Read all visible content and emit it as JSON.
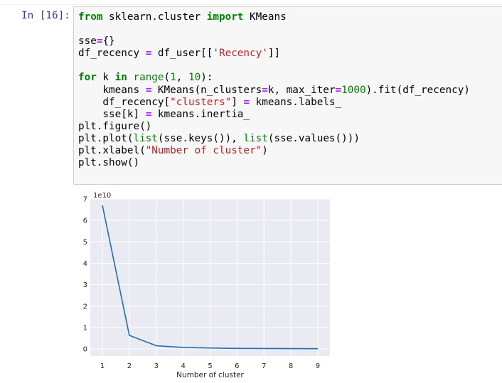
{
  "cell": {
    "prompt": "In [16]:",
    "code_lines": [
      [
        {
          "t": "from",
          "c": "kw"
        },
        {
          "t": " sklearn.cluster ",
          "c": "plain"
        },
        {
          "t": "import",
          "c": "kw"
        },
        {
          "t": " KMeans",
          "c": "plain"
        }
      ],
      [],
      [
        {
          "t": "sse",
          "c": "plain"
        },
        {
          "t": "=",
          "c": "op"
        },
        {
          "t": "{}",
          "c": "plain"
        }
      ],
      [
        {
          "t": "df_recency ",
          "c": "plain"
        },
        {
          "t": "=",
          "c": "op"
        },
        {
          "t": " df_user[[",
          "c": "plain"
        },
        {
          "t": "'Recency'",
          "c": "str"
        },
        {
          "t": "]]",
          "c": "plain"
        }
      ],
      [],
      [
        {
          "t": "for",
          "c": "kw"
        },
        {
          "t": " k ",
          "c": "plain"
        },
        {
          "t": "in",
          "c": "kw"
        },
        {
          "t": " ",
          "c": "plain"
        },
        {
          "t": "range",
          "c": "bi"
        },
        {
          "t": "(",
          "c": "plain"
        },
        {
          "t": "1",
          "c": "num"
        },
        {
          "t": ", ",
          "c": "plain"
        },
        {
          "t": "10",
          "c": "num"
        },
        {
          "t": "):",
          "c": "plain"
        }
      ],
      [
        {
          "t": "    kmeans ",
          "c": "plain"
        },
        {
          "t": "=",
          "c": "op"
        },
        {
          "t": " KMeans(n_clusters",
          "c": "plain"
        },
        {
          "t": "=",
          "c": "op"
        },
        {
          "t": "k, max_iter",
          "c": "plain"
        },
        {
          "t": "=",
          "c": "op"
        },
        {
          "t": "1000",
          "c": "num"
        },
        {
          "t": ").fit(df_recency)",
          "c": "plain"
        }
      ],
      [
        {
          "t": "    df_recency[",
          "c": "plain"
        },
        {
          "t": "\"clusters\"",
          "c": "str"
        },
        {
          "t": "] ",
          "c": "plain"
        },
        {
          "t": "=",
          "c": "op"
        },
        {
          "t": " kmeans.labels_",
          "c": "plain"
        }
      ],
      [
        {
          "t": "    sse[k] ",
          "c": "plain"
        },
        {
          "t": "=",
          "c": "op"
        },
        {
          "t": " kmeans.inertia_",
          "c": "plain"
        }
      ],
      [
        {
          "t": "plt.figure()",
          "c": "plain"
        }
      ],
      [
        {
          "t": "plt.plot(",
          "c": "plain"
        },
        {
          "t": "list",
          "c": "bi"
        },
        {
          "t": "(sse.keys()), ",
          "c": "plain"
        },
        {
          "t": "list",
          "c": "bi"
        },
        {
          "t": "(sse.values()))",
          "c": "plain"
        }
      ],
      [
        {
          "t": "plt.xlabel(",
          "c": "plain"
        },
        {
          "t": "\"Number of cluster\"",
          "c": "str"
        },
        {
          "t": ")",
          "c": "plain"
        }
      ],
      [
        {
          "t": "plt.show()",
          "c": "plain"
        }
      ]
    ]
  },
  "chart_data": {
    "type": "line",
    "x": [
      1,
      2,
      3,
      4,
      5,
      6,
      7,
      8,
      9
    ],
    "series": [
      {
        "values": [
          67000000000.0,
          6300000000.0,
          1500000000.0,
          700000000.0,
          400000000.0,
          250000000.0,
          200000000.0,
          150000000.0,
          120000000.0
        ],
        "color": "#1f6fb4"
      }
    ],
    "xlabel": "Number of cluster",
    "ylabel": "",
    "offset_text": "1e10",
    "xticks": [
      "1",
      "2",
      "3",
      "4",
      "5",
      "6",
      "7",
      "8",
      "9"
    ],
    "yticks": [
      "0",
      "1",
      "2",
      "3",
      "4",
      "5",
      "6",
      "7"
    ],
    "xlim": [
      0.55,
      9.45
    ],
    "ylim": [
      -3300000000.0,
      70000000000.0
    ],
    "grid": true,
    "background": "#eaeaf2",
    "grid_color": "#ffffff"
  }
}
